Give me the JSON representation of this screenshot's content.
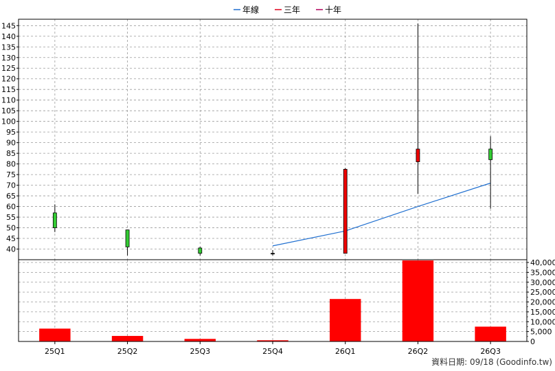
{
  "chart_data": {
    "type": "candlestick",
    "categories": [
      "25Q1",
      "25Q2",
      "25Q3",
      "25Q4",
      "26Q1",
      "26Q2",
      "26Q3"
    ],
    "legend": [
      {
        "label": "年線",
        "color": "#1f6fd0"
      },
      {
        "label": "三年",
        "color": "#e0001b"
      },
      {
        "label": "十年",
        "color": "#b0005a"
      }
    ],
    "price": {
      "ylim": [
        35,
        148
      ],
      "ticks": [
        40,
        45,
        50,
        55,
        60,
        65,
        70,
        75,
        80,
        85,
        90,
        95,
        100,
        105,
        110,
        115,
        120,
        125,
        130,
        135,
        140,
        145
      ],
      "candles": [
        {
          "open": 50,
          "close": 57,
          "high": 61,
          "low": 48,
          "color": "green"
        },
        {
          "open": 41,
          "close": 49,
          "high": 49,
          "low": 37,
          "color": "green"
        },
        {
          "open": 38,
          "close": 40.5,
          "high": 41,
          "low": 37,
          "color": "green"
        },
        {
          "open": 38,
          "close": 38,
          "high": 39.5,
          "low": 37,
          "color": "black"
        },
        {
          "open": 77.5,
          "close": 38,
          "high": 78,
          "low": 38,
          "color": "red"
        },
        {
          "open": 87,
          "close": 81,
          "high": 146,
          "low": 66,
          "color": "red"
        },
        {
          "open": 82,
          "close": 87,
          "high": 93,
          "low": 59,
          "color": "green"
        }
      ],
      "year_line": [
        null,
        null,
        null,
        41.5,
        48.5,
        60,
        71
      ]
    },
    "volume": {
      "ylim": [
        0,
        40000
      ],
      "tick_labels": [
        "0",
        "5,000",
        "10,000",
        "15,000",
        "20,000",
        "25,000",
        "30,000",
        "35,000",
        "40,000"
      ],
      "ticks": [
        0,
        5000,
        10000,
        15000,
        20000,
        25000,
        30000,
        35000,
        40000
      ],
      "values": [
        6500,
        2800,
        1300,
        600,
        21500,
        41000,
        7500
      ]
    }
  },
  "footer": "資料日期: 09/18  (Goodinfo.tw)"
}
